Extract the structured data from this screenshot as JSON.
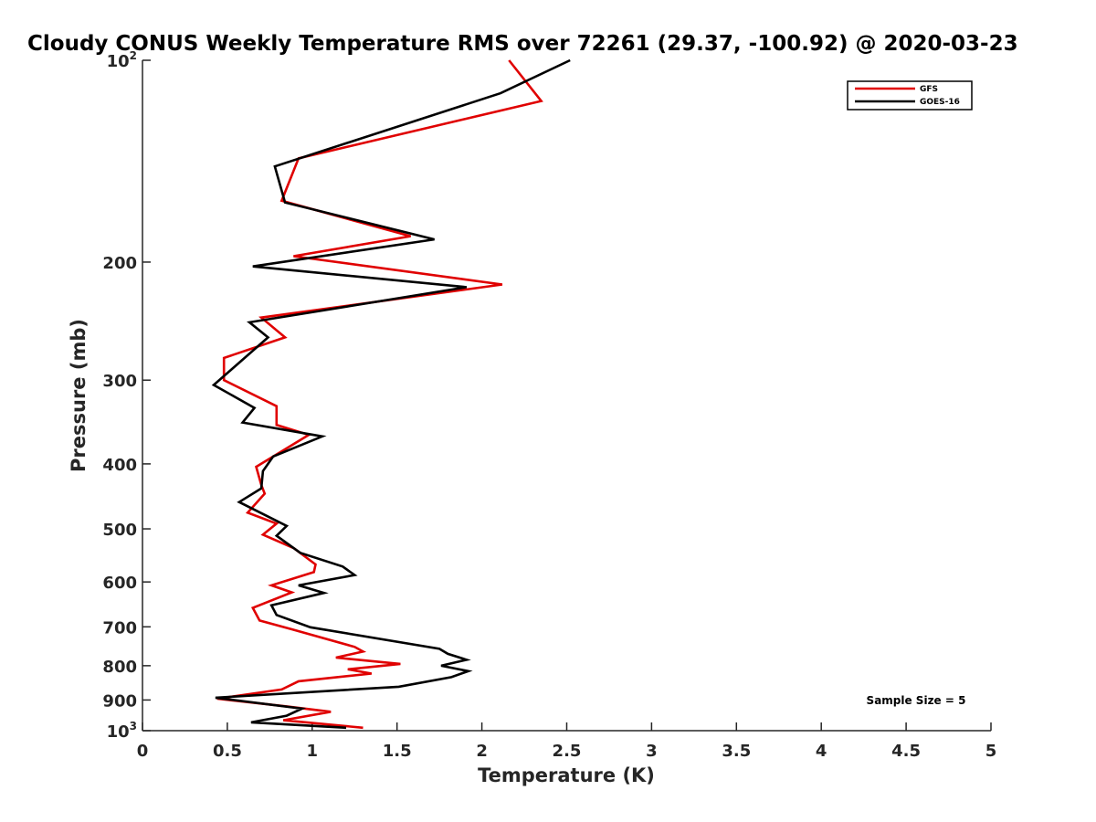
{
  "chart_data": {
    "type": "line",
    "title": "Cloudy CONUS Weekly Temperature RMS over 72261 (29.37, -100.92) @ 2020-03-23",
    "xlabel": "Temperature (K)",
    "ylabel": "Pressure (mb)",
    "xlim": [
      0,
      5
    ],
    "ylim": [
      100,
      1000
    ],
    "yscale": "log",
    "y_reversed": true,
    "grid": false,
    "legend_position": "top-right",
    "x_ticks": [
      {
        "value": 0,
        "label": "0"
      },
      {
        "value": 0.5,
        "label": "0.5"
      },
      {
        "value": 1,
        "label": "1"
      },
      {
        "value": 1.5,
        "label": "1.5"
      },
      {
        "value": 2,
        "label": "2"
      },
      {
        "value": 2.5,
        "label": "2.5"
      },
      {
        "value": 3,
        "label": "3"
      },
      {
        "value": 3.5,
        "label": "3.5"
      },
      {
        "value": 4,
        "label": "4"
      },
      {
        "value": 4.5,
        "label": "4.5"
      },
      {
        "value": 5,
        "label": "5"
      }
    ],
    "y_ticks": [
      {
        "value": 100,
        "label": "10",
        "sup": "2"
      },
      {
        "value": 200,
        "label": "200"
      },
      {
        "value": 300,
        "label": "300"
      },
      {
        "value": 400,
        "label": "400"
      },
      {
        "value": 500,
        "label": "500"
      },
      {
        "value": 600,
        "label": "600"
      },
      {
        "value": 700,
        "label": "700"
      },
      {
        "value": 800,
        "label": "800"
      },
      {
        "value": 900,
        "label": "900"
      },
      {
        "value": 1000,
        "label": "10",
        "sup": "3"
      }
    ],
    "series": [
      {
        "name": "GFS",
        "color": "#e00000",
        "points": [
          [
            2.16,
            100
          ],
          [
            2.35,
            115
          ],
          [
            0.92,
            140
          ],
          [
            0.82,
            162
          ],
          [
            1.58,
            183
          ],
          [
            0.89,
            196
          ],
          [
            2.12,
            216
          ],
          [
            0.7,
            242
          ],
          [
            0.84,
            259
          ],
          [
            0.48,
            278
          ],
          [
            0.48,
            300
          ],
          [
            0.79,
            328
          ],
          [
            0.79,
            350
          ],
          [
            0.98,
            362
          ],
          [
            0.67,
            404
          ],
          [
            0.7,
            430
          ],
          [
            0.72,
            443
          ],
          [
            0.62,
            473
          ],
          [
            0.79,
            491
          ],
          [
            0.71,
            510
          ],
          [
            0.89,
            534
          ],
          [
            1.02,
            565
          ],
          [
            1.01,
            580
          ],
          [
            0.76,
            607
          ],
          [
            0.88,
            622
          ],
          [
            0.65,
            656
          ],
          [
            0.69,
            685
          ],
          [
            0.88,
            706
          ],
          [
            1.25,
            750
          ],
          [
            1.3,
            762
          ],
          [
            1.14,
            778
          ],
          [
            1.52,
            795
          ],
          [
            1.21,
            810
          ],
          [
            1.35,
            822
          ],
          [
            0.92,
            844
          ],
          [
            0.82,
            868
          ],
          [
            0.44,
            896
          ],
          [
            0.85,
            920
          ],
          [
            1.11,
            937
          ],
          [
            0.83,
            965
          ],
          [
            1.3,
            990
          ]
        ]
      },
      {
        "name": "GOES-16",
        "color": "#000000",
        "points": [
          [
            2.52,
            100
          ],
          [
            2.11,
            112
          ],
          [
            0.78,
            144
          ],
          [
            0.84,
            163
          ],
          [
            1.72,
            185
          ],
          [
            0.65,
            203
          ],
          [
            1.91,
            218
          ],
          [
            0.63,
            246
          ],
          [
            0.74,
            259
          ],
          [
            0.42,
            305
          ],
          [
            0.66,
            330
          ],
          [
            0.59,
            347
          ],
          [
            1.06,
            364
          ],
          [
            0.77,
            390
          ],
          [
            0.71,
            410
          ],
          [
            0.7,
            435
          ],
          [
            0.57,
            456
          ],
          [
            0.85,
            495
          ],
          [
            0.79,
            512
          ],
          [
            0.93,
            543
          ],
          [
            1.18,
            569
          ],
          [
            1.25,
            586
          ],
          [
            0.92,
            607
          ],
          [
            1.07,
            623
          ],
          [
            0.76,
            650
          ],
          [
            0.79,
            672
          ],
          [
            0.99,
            701
          ],
          [
            1.75,
            755
          ],
          [
            1.8,
            768
          ],
          [
            1.91,
            784
          ],
          [
            1.76,
            800
          ],
          [
            1.92,
            815
          ],
          [
            1.82,
            832
          ],
          [
            1.51,
            860
          ],
          [
            0.43,
            893
          ],
          [
            0.94,
            927
          ],
          [
            0.85,
            950
          ],
          [
            0.64,
            972
          ],
          [
            1.2,
            990
          ]
        ]
      }
    ],
    "annotation": "Sample Size = 5"
  }
}
